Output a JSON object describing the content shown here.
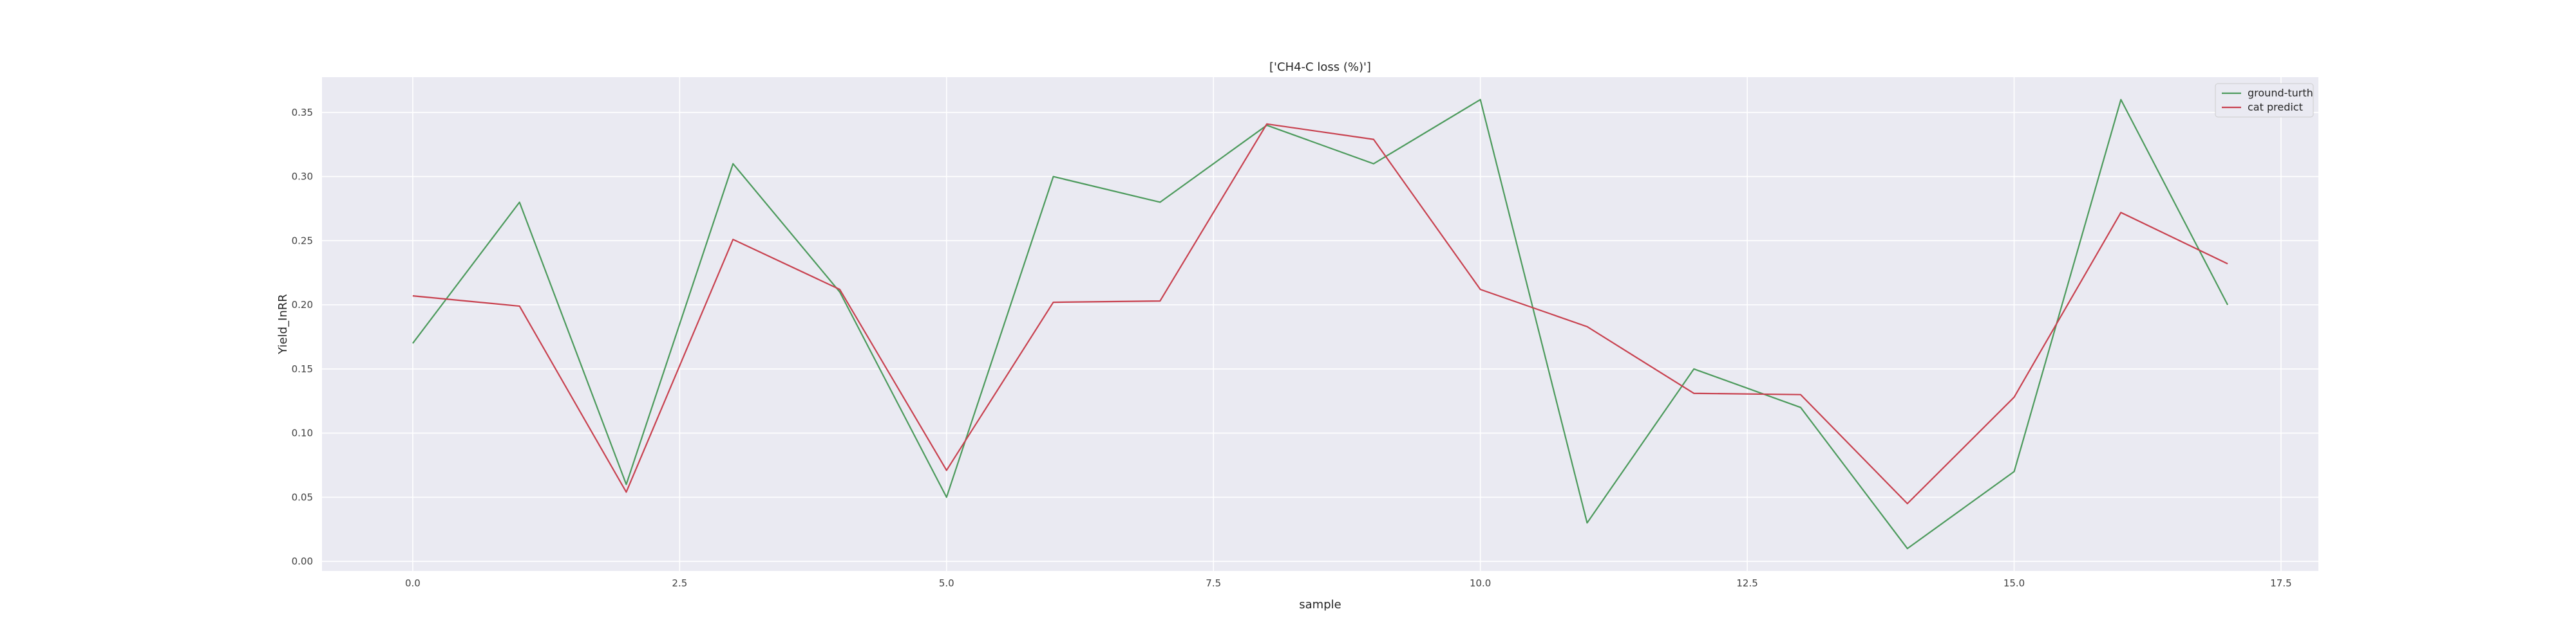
{
  "chart_data": {
    "type": "line",
    "title": "['CH4-C loss (%)']",
    "xlabel": "sample",
    "ylabel": "Yield_InRR",
    "xlim": [
      -0.85,
      17.85
    ],
    "ylim": [
      -0.0075,
      0.3775
    ],
    "x_ticks": [
      0.0,
      2.5,
      5.0,
      7.5,
      10.0,
      12.5,
      15.0,
      17.5
    ],
    "x_tick_labels": [
      "0.0",
      "2.5",
      "5.0",
      "7.5",
      "10.0",
      "12.5",
      "15.0",
      "17.5"
    ],
    "y_ticks": [
      0.0,
      0.05,
      0.1,
      0.15,
      0.2,
      0.25,
      0.3,
      0.35
    ],
    "y_tick_labels": [
      "0.00",
      "0.05",
      "0.10",
      "0.15",
      "0.20",
      "0.25",
      "0.30",
      "0.35"
    ],
    "grid": true,
    "legend_position": "top-right",
    "x": [
      0,
      1,
      2,
      3,
      4,
      5,
      6,
      7,
      8,
      9,
      10,
      11,
      12,
      13,
      14,
      15,
      16,
      17
    ],
    "series": [
      {
        "name": "ground-turth",
        "color": "#4c9a5c",
        "values": [
          0.17,
          0.28,
          0.06,
          0.31,
          0.21,
          0.05,
          0.3,
          0.28,
          0.34,
          0.31,
          0.36,
          0.03,
          0.15,
          0.12,
          0.01,
          0.07,
          0.36,
          0.2
        ]
      },
      {
        "name": "cat predict",
        "color": "#c8414f",
        "values": [
          0.207,
          0.199,
          0.054,
          0.251,
          0.212,
          0.071,
          0.202,
          0.203,
          0.341,
          0.329,
          0.212,
          0.183,
          0.131,
          0.13,
          0.045,
          0.128,
          0.272,
          0.232
        ]
      }
    ],
    "colors": {
      "plot_background": "#eaeaf2",
      "grid": "#ffffff",
      "figure_background": "#ffffff"
    }
  }
}
